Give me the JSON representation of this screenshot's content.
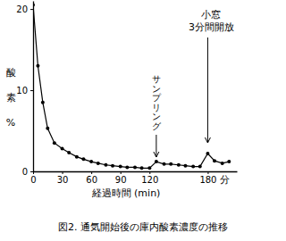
{
  "chart_data": {
    "type": "line",
    "title": "図2. 通気開始後の庫内酸素濃度の推移",
    "xlabel": "経過時間 (min)",
    "ylabel": "酸素%",
    "xunit": "分",
    "x": [
      0,
      5,
      10,
      15,
      22,
      30,
      37,
      45,
      52,
      60,
      67,
      75,
      82,
      90,
      97,
      105,
      112,
      120,
      127,
      135,
      142,
      150,
      157,
      165,
      172,
      180,
      187,
      195,
      202
    ],
    "values": [
      20.5,
      13,
      8.5,
      5.3,
      3.5,
      2.8,
      2.3,
      1.8,
      1.5,
      1.2,
      1.0,
      0.8,
      0.7,
      0.6,
      0.5,
      0.5,
      0.4,
      0.4,
      1.2,
      0.9,
      0.9,
      0.8,
      0.7,
      0.6,
      0.6,
      2.2,
      1.3,
      1.0,
      1.2
    ],
    "color": "#000000",
    "marker": "circle",
    "xlim": [
      0,
      210
    ],
    "xticks": [
      0,
      30,
      60,
      90,
      120,
      180
    ],
    "ylim": [
      0,
      21
    ],
    "yticks": [
      0,
      10,
      20
    ],
    "grid": false,
    "annotations": [
      {
        "lines": [
          "サンプリング"
        ],
        "x": 127,
        "direction": "vertical"
      },
      {
        "lines": [
          "小窓",
          "3分間開放"
        ],
        "x": 180,
        "direction": "horizontal"
      }
    ]
  }
}
